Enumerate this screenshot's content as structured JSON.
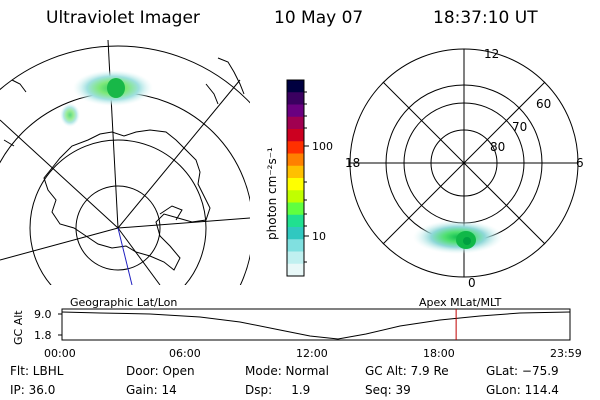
{
  "header": {
    "title": "Ultraviolet Imager",
    "date": "10 May 07",
    "time": "18:37:10 UT"
  },
  "colorbar": {
    "unit_label": "photon cm⁻²s⁻¹",
    "ticks": [
      "100",
      "10"
    ],
    "colors": [
      "#000040",
      "#3a0060",
      "#6a0080",
      "#a00050",
      "#cc0020",
      "#ff3000",
      "#ff8000",
      "#ffc000",
      "#ffff00",
      "#c0ff00",
      "#60ff40",
      "#20e090",
      "#30c8c0",
      "#80e0e0",
      "#c0f0f0",
      "#e8f8f8"
    ]
  },
  "polar": {
    "mlt_labels": [
      "12",
      "18",
      "6",
      "0"
    ],
    "mlat_labels": [
      "60",
      "70",
      "80"
    ]
  },
  "timeline": {
    "left_caption": "Geographic Lat/Lon",
    "right_caption": "Apex  MLat/MLT",
    "axis_title": "GC Alt",
    "y_ticks": [
      "9.0",
      "1.8"
    ],
    "x_ticks": [
      "00:00",
      "06:00",
      "12:00",
      "18:00",
      "23:59"
    ],
    "marker_time_hours": 18.62
  },
  "info": {
    "filter": "Flt: LBHL",
    "door": "Door: Open",
    "mode": "Mode: Normal",
    "gc_alt": "GC Alt: 7.9 Re",
    "glat": "GLat: −75.9",
    "ip": "IP: 36.0",
    "gain": "Gain: 14",
    "dsp": "Dsp:     1.9",
    "seq": "Seq: 39",
    "glon": "GLon: 114.4"
  }
}
